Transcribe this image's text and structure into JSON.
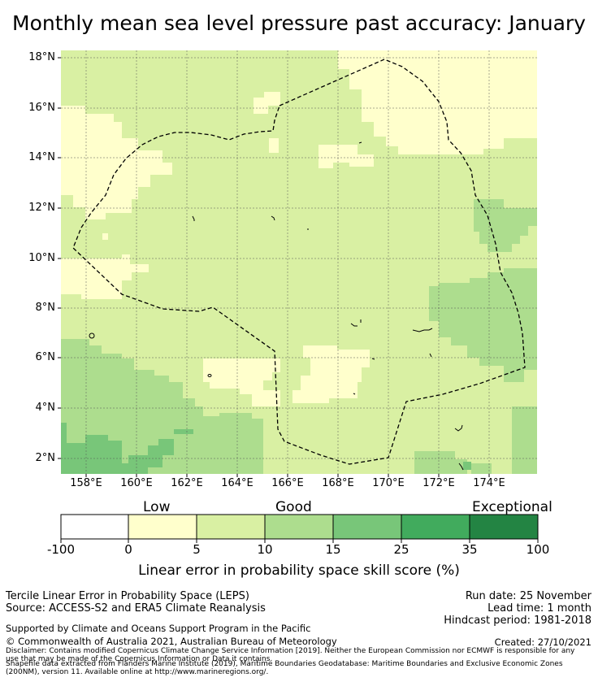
{
  "title": "Monthly mean sea level pressure past accuracy: January",
  "map": {
    "lat_ticks": [
      "18°N",
      "16°N",
      "14°N",
      "12°N",
      "10°N",
      "8°N",
      "6°N",
      "4°N",
      "2°N"
    ],
    "lon_ticks": [
      "158°E",
      "160°E",
      "162°E",
      "164°E",
      "166°E",
      "168°E",
      "170°E",
      "172°E",
      "174°E"
    ],
    "lat_range": [
      1.4,
      18.3
    ],
    "lon_range": [
      157.0,
      176.0
    ],
    "grid": true,
    "boundary_style": "dashed"
  },
  "colorbar": {
    "categories": [
      "Low",
      "Good",
      "Exceptional"
    ],
    "ticks": [
      "-100",
      "0",
      "5",
      "10",
      "15",
      "25",
      "35",
      "100"
    ],
    "colors": [
      "#ffffff",
      "#ffffcc",
      "#d9f0a3",
      "#addd8e",
      "#78c679",
      "#41ab5d",
      "#238443"
    ],
    "label": "Linear error in probability space skill score (%)"
  },
  "info": {
    "method": "Tercile Linear Error in Probability Space (LEPS)",
    "source": "Source: ACCESS-S2 and ERA5 Climate Reanalysis",
    "run_date": "Run date: 25 November",
    "lead_time": "Lead time: 1 month",
    "hindcast": "Hindcast period: 1981-2018",
    "support": "Supported by Climate and Oceans Support Program in the Pacific",
    "copyright": "© Commonwealth of Australia 2021, Australian Bureau of Meteorology",
    "created": "Created: 27/10/2021",
    "disclaimer1": "Disclaimer: Contains modified Copernicus Climate Change Service Information [2019]. Neither the European Commission nor ECMWF is responsible for any",
    "disclaimer2": "use that may be made of the Copernicus Information or Data it contains.",
    "shapefile1": "Shapefile data extracted from Flanders Marine Institute (2019), Maritime Boundaries Geodatabase: Maritime Boundaries and Exclusive Economic Zones",
    "shapefile2": "(200NM), version 11. Available online at http://www.marineregions.org/."
  }
}
